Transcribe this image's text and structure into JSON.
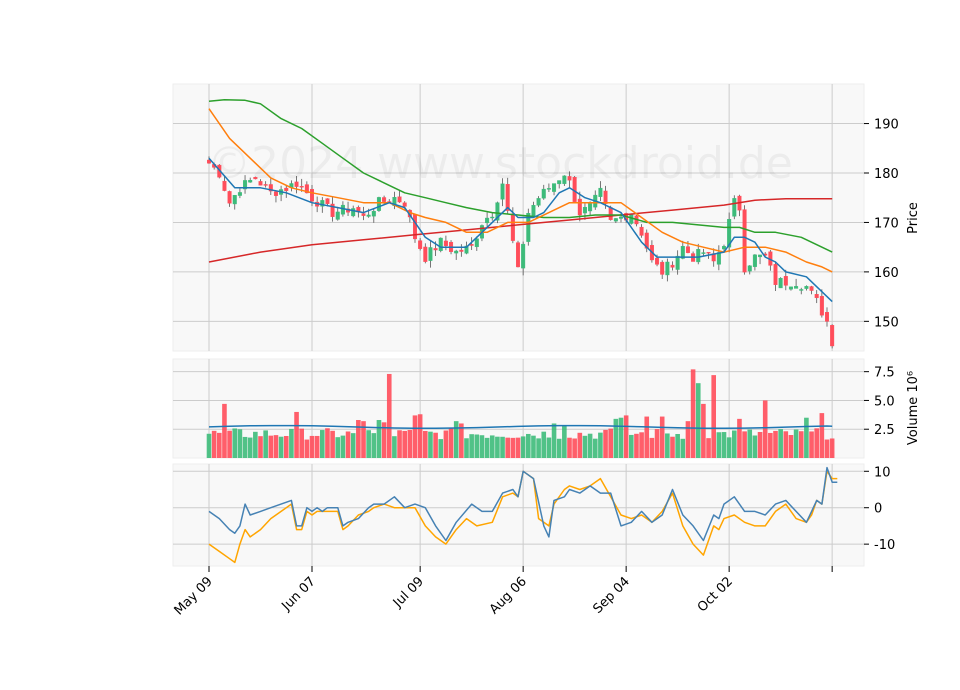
{
  "chart_data": {
    "type": "candlestick",
    "watermark": "©2024 www.stockdroid.de",
    "x_tick_labels": [
      "May 09",
      "Jun 07",
      "Jul 09",
      "Aug 06",
      "Sep 04",
      "Oct 02",
      ""
    ],
    "x_tick_index": [
      0,
      20,
      41,
      61,
      81,
      101,
      121
    ],
    "n_sessions": 122,
    "colors": {
      "up": "#3dbb7a",
      "down": "#ff4d5a",
      "ma_fast": "#1f77b4",
      "ma_mid": "#ff7f0e",
      "ma_slow": "#2ca02c",
      "ma_long": "#d62728",
      "volume_ma": "#1f77b4",
      "osc_line": "#4682b4",
      "osc_signal": "#ffa500",
      "grid": "#cccccc",
      "panel_bg": "#f8f8f8"
    },
    "price_panel": {
      "ylabel": "Price",
      "ylim": [
        144,
        198
      ],
      "yticks": [
        150,
        160,
        170,
        180,
        190
      ],
      "anchors": [
        [
          0,
          182
        ],
        [
          2,
          180
        ],
        [
          4,
          174
        ],
        [
          6,
          177
        ],
        [
          9,
          179
        ],
        [
          12,
          176
        ],
        [
          15,
          177
        ],
        [
          17,
          178
        ],
        [
          20,
          175
        ],
        [
          24,
          172
        ],
        [
          28,
          173
        ],
        [
          30,
          171
        ],
        [
          33,
          174
        ],
        [
          36,
          175
        ],
        [
          38,
          174
        ],
        [
          40,
          167
        ],
        [
          42,
          163
        ],
        [
          45,
          166
        ],
        [
          48,
          164
        ],
        [
          51,
          165
        ],
        [
          53,
          170
        ],
        [
          55,
          172
        ],
        [
          57,
          178
        ],
        [
          59,
          166
        ],
        [
          60,
          160
        ],
        [
          62,
          172
        ],
        [
          64,
          175
        ],
        [
          67,
          178
        ],
        [
          69,
          180
        ],
        [
          70,
          178
        ],
        [
          72,
          172
        ],
        [
          74,
          173
        ],
        [
          76,
          176
        ],
        [
          78,
          170
        ],
        [
          80,
          171
        ],
        [
          82,
          172
        ],
        [
          84,
          168
        ],
        [
          86,
          162
        ],
        [
          88,
          160
        ],
        [
          90,
          162
        ],
        [
          92,
          165
        ],
        [
          94,
          163
        ],
        [
          96,
          164
        ],
        [
          98,
          162
        ],
        [
          100,
          166
        ],
        [
          102,
          174
        ],
        [
          103,
          173
        ],
        [
          104,
          161
        ],
        [
          106,
          163
        ],
        [
          108,
          163
        ],
        [
          110,
          158
        ],
        [
          112,
          158
        ],
        [
          114,
          158
        ],
        [
          116,
          157
        ],
        [
          118,
          154
        ],
        [
          120,
          150
        ],
        [
          121,
          146
        ]
      ],
      "ma_fast": [
        [
          0,
          183
        ],
        [
          5,
          177
        ],
        [
          10,
          177
        ],
        [
          15,
          176
        ],
        [
          20,
          174
        ],
        [
          25,
          173
        ],
        [
          30,
          172
        ],
        [
          35,
          174
        ],
        [
          38,
          173
        ],
        [
          42,
          167
        ],
        [
          45,
          165
        ],
        [
          50,
          165
        ],
        [
          55,
          170
        ],
        [
          58,
          173
        ],
        [
          60,
          171
        ],
        [
          63,
          171
        ],
        [
          65,
          172
        ],
        [
          68,
          176
        ],
        [
          70,
          177
        ],
        [
          73,
          175
        ],
        [
          76,
          174
        ],
        [
          80,
          172
        ],
        [
          84,
          166
        ],
        [
          87,
          163
        ],
        [
          90,
          163
        ],
        [
          95,
          163
        ],
        [
          100,
          164
        ],
        [
          102,
          167
        ],
        [
          104,
          167
        ],
        [
          106,
          166
        ],
        [
          108,
          163
        ],
        [
          110,
          162
        ],
        [
          112,
          160
        ],
        [
          116,
          159
        ],
        [
          119,
          156
        ],
        [
          121,
          154
        ]
      ],
      "ma_mid": [
        [
          0,
          193
        ],
        [
          4,
          187
        ],
        [
          8,
          183
        ],
        [
          12,
          179
        ],
        [
          16,
          177
        ],
        [
          20,
          176
        ],
        [
          25,
          175
        ],
        [
          30,
          174
        ],
        [
          35,
          174
        ],
        [
          39,
          172
        ],
        [
          42,
          171
        ],
        [
          46,
          170
        ],
        [
          50,
          168
        ],
        [
          54,
          168
        ],
        [
          58,
          170
        ],
        [
          60,
          170
        ],
        [
          62,
          170
        ],
        [
          66,
          172
        ],
        [
          70,
          174
        ],
        [
          73,
          174
        ],
        [
          76,
          174
        ],
        [
          80,
          174
        ],
        [
          84,
          171
        ],
        [
          88,
          168
        ],
        [
          92,
          166
        ],
        [
          96,
          165
        ],
        [
          100,
          164
        ],
        [
          104,
          165
        ],
        [
          108,
          165
        ],
        [
          112,
          164
        ],
        [
          116,
          162
        ],
        [
          119,
          161
        ],
        [
          121,
          160
        ]
      ],
      "ma_slow": [
        [
          0,
          194.5
        ],
        [
          3,
          194.8
        ],
        [
          7,
          194.7
        ],
        [
          10,
          194
        ],
        [
          14,
          191
        ],
        [
          18,
          189
        ],
        [
          22,
          186
        ],
        [
          26,
          183
        ],
        [
          30,
          180
        ],
        [
          34,
          178
        ],
        [
          38,
          176
        ],
        [
          42,
          175
        ],
        [
          46,
          174
        ],
        [
          50,
          173
        ],
        [
          55,
          172
        ],
        [
          60,
          171.5
        ],
        [
          65,
          171
        ],
        [
          70,
          171
        ],
        [
          75,
          171.5
        ],
        [
          80,
          171.5
        ],
        [
          85,
          170
        ],
        [
          90,
          170
        ],
        [
          95,
          169.5
        ],
        [
          100,
          169
        ],
        [
          103,
          169
        ],
        [
          106,
          168
        ],
        [
          110,
          168
        ],
        [
          115,
          167
        ],
        [
          121,
          164
        ]
      ],
      "ma_long": [
        [
          0,
          162
        ],
        [
          10,
          164
        ],
        [
          20,
          165.5
        ],
        [
          30,
          166.5
        ],
        [
          40,
          167.5
        ],
        [
          50,
          168.5
        ],
        [
          60,
          169.5
        ],
        [
          70,
          170.5
        ],
        [
          80,
          171.5
        ],
        [
          90,
          172.5
        ],
        [
          100,
          173.5
        ],
        [
          106,
          174.5
        ],
        [
          112,
          174.8
        ],
        [
          121,
          174.8
        ]
      ]
    },
    "volume_panel": {
      "ylabel": "Volume  10⁶",
      "ylim": [
        0,
        8.6
      ],
      "yticks": [
        2.5,
        5.0,
        7.5
      ],
      "spikes": [
        [
          3,
          4.7
        ],
        [
          17,
          4.0
        ],
        [
          29,
          3.3
        ],
        [
          30,
          3.2
        ],
        [
          33,
          3.3
        ],
        [
          34,
          3.1
        ],
        [
          35,
          7.3
        ],
        [
          40,
          3.7
        ],
        [
          41,
          3.8
        ],
        [
          48,
          3.2
        ],
        [
          49,
          3.0
        ],
        [
          67,
          3.0
        ],
        [
          69,
          2.8
        ],
        [
          79,
          3.4
        ],
        [
          80,
          3.5
        ],
        [
          81,
          3.7
        ],
        [
          85,
          3.6
        ],
        [
          88,
          3.6
        ],
        [
          93,
          3.2
        ],
        [
          94,
          7.7
        ],
        [
          95,
          6.5
        ],
        [
          96,
          4.7
        ],
        [
          98,
          7.2
        ],
        [
          103,
          3.4
        ],
        [
          108,
          5.0
        ],
        [
          116,
          3.5
        ],
        [
          119,
          3.9
        ]
      ],
      "ma_level": 2.7
    },
    "oscillator_panel": {
      "ylim": [
        -16,
        12
      ],
      "yticks": [
        -10,
        0,
        10
      ],
      "line": [
        [
          0,
          -1
        ],
        [
          2,
          -3
        ],
        [
          4,
          -6
        ],
        [
          5,
          -7
        ],
        [
          6,
          -5
        ],
        [
          7,
          1
        ],
        [
          8,
          -2
        ],
        [
          10,
          -1
        ],
        [
          12,
          0
        ],
        [
          14,
          1
        ],
        [
          16,
          2
        ],
        [
          17,
          -5
        ],
        [
          18,
          -5
        ],
        [
          19,
          0
        ],
        [
          20,
          -1
        ],
        [
          21,
          0
        ],
        [
          22,
          -1
        ],
        [
          23,
          0
        ],
        [
          25,
          0
        ],
        [
          26,
          -5
        ],
        [
          27,
          -4
        ],
        [
          29,
          -3
        ],
        [
          31,
          0
        ],
        [
          32,
          1
        ],
        [
          34,
          1
        ],
        [
          36,
          3
        ],
        [
          38,
          0
        ],
        [
          40,
          1
        ],
        [
          42,
          0
        ],
        [
          44,
          -5
        ],
        [
          46,
          -9
        ],
        [
          48,
          -4
        ],
        [
          51,
          1
        ],
        [
          53,
          -1
        ],
        [
          55,
          -1
        ],
        [
          57,
          4
        ],
        [
          59,
          5
        ],
        [
          60,
          3
        ],
        [
          61,
          10
        ],
        [
          63,
          8
        ],
        [
          65,
          -5
        ],
        [
          66,
          -8
        ],
        [
          67,
          2
        ],
        [
          69,
          3
        ],
        [
          70,
          5
        ],
        [
          72,
          4
        ],
        [
          74,
          6
        ],
        [
          76,
          4
        ],
        [
          78,
          4
        ],
        [
          80,
          -5
        ],
        [
          82,
          -4
        ],
        [
          84,
          -1
        ],
        [
          86,
          -4
        ],
        [
          88,
          -2
        ],
        [
          90,
          5
        ],
        [
          92,
          -2
        ],
        [
          94,
          -5
        ],
        [
          96,
          -9
        ],
        [
          98,
          -2
        ],
        [
          99,
          -3
        ],
        [
          100,
          1
        ],
        [
          102,
          3
        ],
        [
          104,
          -1
        ],
        [
          106,
          -1
        ],
        [
          108,
          -2
        ],
        [
          110,
          1
        ],
        [
          112,
          2
        ],
        [
          114,
          -1
        ],
        [
          116,
          -4
        ],
        [
          117,
          -1
        ],
        [
          118,
          2
        ],
        [
          119,
          1
        ],
        [
          120,
          11
        ],
        [
          121,
          7
        ],
        [
          122,
          7
        ]
      ],
      "signal": [
        [
          0,
          -10
        ],
        [
          2,
          -12
        ],
        [
          4,
          -14
        ],
        [
          5,
          -15
        ],
        [
          6,
          -10
        ],
        [
          7,
          -6
        ],
        [
          8,
          -8
        ],
        [
          10,
          -6
        ],
        [
          12,
          -3
        ],
        [
          14,
          -1
        ],
        [
          16,
          1
        ],
        [
          17,
          -6
        ],
        [
          18,
          -6
        ],
        [
          19,
          -1
        ],
        [
          20,
          -2
        ],
        [
          21,
          -1
        ],
        [
          23,
          -1
        ],
        [
          25,
          -1
        ],
        [
          26,
          -6
        ],
        [
          27,
          -5
        ],
        [
          29,
          -2
        ],
        [
          31,
          -1
        ],
        [
          32,
          0
        ],
        [
          34,
          1
        ],
        [
          36,
          0
        ],
        [
          38,
          0
        ],
        [
          40,
          0
        ],
        [
          42,
          -5
        ],
        [
          44,
          -8
        ],
        [
          46,
          -10
        ],
        [
          48,
          -6
        ],
        [
          50,
          -3
        ],
        [
          52,
          -5
        ],
        [
          55,
          -4
        ],
        [
          57,
          3
        ],
        [
          59,
          4
        ],
        [
          60,
          3
        ],
        [
          61,
          10
        ],
        [
          63,
          8
        ],
        [
          64,
          -3
        ],
        [
          66,
          -5
        ],
        [
          67,
          1
        ],
        [
          69,
          5
        ],
        [
          70,
          6
        ],
        [
          72,
          5
        ],
        [
          74,
          6
        ],
        [
          76,
          8
        ],
        [
          78,
          3
        ],
        [
          80,
          -2
        ],
        [
          82,
          -3
        ],
        [
          84,
          -2
        ],
        [
          86,
          -4
        ],
        [
          88,
          -1
        ],
        [
          90,
          4
        ],
        [
          92,
          -5
        ],
        [
          94,
          -10
        ],
        [
          96,
          -13
        ],
        [
          98,
          -5
        ],
        [
          99,
          -6
        ],
        [
          100,
          -3
        ],
        [
          102,
          -2
        ],
        [
          104,
          -4
        ],
        [
          106,
          -5
        ],
        [
          108,
          -5
        ],
        [
          110,
          -1
        ],
        [
          112,
          1
        ],
        [
          114,
          -3
        ],
        [
          116,
          -4
        ],
        [
          117,
          -2
        ],
        [
          118,
          2
        ],
        [
          119,
          1
        ],
        [
          120,
          10
        ],
        [
          121,
          8
        ],
        [
          122,
          8
        ]
      ]
    }
  }
}
